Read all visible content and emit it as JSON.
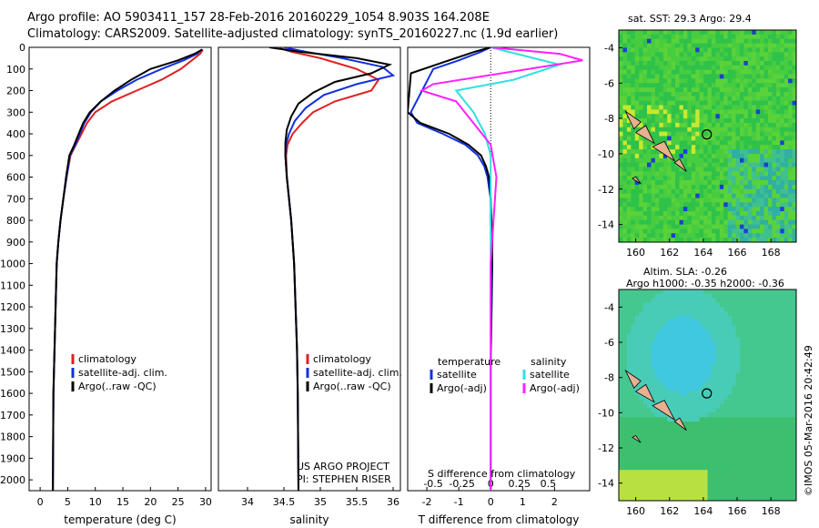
{
  "header": {
    "line1": "Argo profile: AO 5903411_157 28-Feb-2016 20160229_1054 8.903S 164.208E",
    "line2": "Climatology: CARS2009. Satellite-adjusted climatology: synTS_20160227.nc (1.9d earlier)"
  },
  "credits": {
    "project": "US ARGO PROJECT",
    "pi": "PI: STEPHEN RISER",
    "imos": "©IMOS 05-Mar-2016 20:42:49"
  },
  "colors": {
    "climatology": "#e02020",
    "satellite": "#1030e0",
    "argo": "#000000",
    "sal_satellite": "#30e0e0",
    "sal_argo": "#ff20ff",
    "map_island": "#e8b090",
    "map_float": "#000000"
  },
  "map_sst": {
    "title": "sat. SST: 29.3 Argo: 29.4",
    "float_lon": 164.208,
    "float_lat": -8.903,
    "xticks": [
      "160",
      "162",
      "164",
      "166",
      "168"
    ],
    "yticks": [
      "-4",
      "-6",
      "-8",
      "-10",
      "-12",
      "-14"
    ]
  },
  "map_sla": {
    "title1": "Altim. SLA: -0.26",
    "title2": "Argo h1000: -0.35 h2000: -0.36",
    "float_lon": 164.208,
    "float_lat": -8.903,
    "xticks": [
      "160",
      "162",
      "164",
      "166",
      "168"
    ],
    "yticks": [
      "-4",
      "-6",
      "-8",
      "-10",
      "-12",
      "-14"
    ]
  },
  "chart_data": [
    {
      "type": "line",
      "id": "temperature",
      "xlabel": "temperature (deg C)",
      "ylabel": "",
      "xlim": [
        -2,
        31
      ],
      "ylim": [
        2050,
        0
      ],
      "xticks": [
        "0",
        "5",
        "10",
        "15",
        "20",
        "25",
        "30"
      ],
      "yticks": [
        "0",
        "100",
        "200",
        "300",
        "400",
        "500",
        "600",
        "700",
        "800",
        "900",
        "1000",
        "1100",
        "1200",
        "1300",
        "1400",
        "1500",
        "1600",
        "1700",
        "1800",
        "1900",
        "2000"
      ],
      "legend": [
        "climatology",
        "satellite-adj. clim.",
        "Argo(..raw -QC)"
      ],
      "series": [
        {
          "name": "climatology",
          "color": "climatology",
          "x": [
            29.5,
            29.0,
            27.5,
            25.5,
            22.0,
            17.5,
            13.0,
            10.0,
            8.5,
            7.5,
            6.5,
            5.5,
            4.8,
            4.2,
            3.7,
            3.3,
            3.0,
            2.8,
            2.6,
            2.4,
            2.3
          ],
          "y": [
            10,
            30,
            60,
            100,
            150,
            200,
            250,
            300,
            350,
            400,
            450,
            500,
            600,
            700,
            800,
            900,
            1000,
            1200,
            1400,
            1600,
            2050
          ]
        },
        {
          "name": "satellite-adj. clim.",
          "color": "satellite",
          "x": [
            29.3,
            28.5,
            26.0,
            22.0,
            17.5,
            14.0,
            11.0,
            9.2,
            8.0,
            7.2,
            6.4,
            5.4,
            4.8,
            4.2,
            3.7,
            3.3,
            3.0,
            2.8,
            2.6,
            2.4,
            2.3
          ],
          "y": [
            10,
            30,
            60,
            100,
            150,
            200,
            250,
            300,
            350,
            400,
            450,
            500,
            600,
            700,
            800,
            900,
            1000,
            1200,
            1400,
            1600,
            2050
          ]
        },
        {
          "name": "Argo(..raw -QC)",
          "color": "argo",
          "x": [
            29.4,
            28.0,
            25.0,
            20.0,
            16.5,
            13.5,
            11.0,
            9.0,
            7.8,
            7.0,
            6.2,
            5.3,
            4.7,
            4.2,
            3.7,
            3.3,
            3.0,
            2.8,
            2.6,
            2.4,
            2.3
          ],
          "y": [
            10,
            30,
            60,
            100,
            150,
            200,
            250,
            300,
            350,
            400,
            450,
            500,
            600,
            700,
            800,
            900,
            1000,
            1200,
            1400,
            1600,
            2050
          ]
        }
      ]
    },
    {
      "type": "line",
      "id": "salinity",
      "xlabel": "salinity",
      "xlim": [
        33.6,
        36.1
      ],
      "ylim": [
        2050,
        0
      ],
      "xticks": [
        "34",
        "34.5",
        "35",
        "35.5",
        "36"
      ],
      "legend": [
        "climatology",
        "satellite-adj. clim.",
        "Argo(..raw -QC)"
      ],
      "series": [
        {
          "name": "climatology",
          "color": "climatology",
          "x": [
            34.4,
            34.6,
            35.0,
            35.5,
            35.8,
            35.7,
            35.2,
            34.9,
            34.75,
            34.62,
            34.55,
            34.53,
            34.54,
            34.57,
            34.6,
            34.62,
            34.64,
            34.66,
            34.68,
            34.69,
            34.7
          ],
          "y": [
            0,
            20,
            50,
            100,
            150,
            200,
            250,
            300,
            350,
            400,
            450,
            500,
            600,
            700,
            800,
            900,
            1000,
            1200,
            1400,
            1600,
            2050
          ]
        },
        {
          "name": "satellite-adj. clim.",
          "color": "satellite",
          "x": [
            34.5,
            34.8,
            35.3,
            35.85,
            36.0,
            35.5,
            35.05,
            34.8,
            34.65,
            34.57,
            34.53,
            34.52,
            34.54,
            34.57,
            34.6,
            34.62,
            34.64,
            34.66,
            34.68,
            34.69,
            34.7
          ],
          "y": [
            0,
            20,
            50,
            90,
            130,
            170,
            220,
            280,
            340,
            400,
            450,
            500,
            600,
            700,
            800,
            900,
            1000,
            1200,
            1400,
            1600,
            2050
          ]
        },
        {
          "name": "Argo(..raw -QC)",
          "color": "argo",
          "x": [
            34.3,
            34.7,
            35.5,
            35.95,
            35.7,
            35.2,
            34.9,
            34.7,
            34.6,
            34.54,
            34.52,
            34.52,
            34.54,
            34.57,
            34.6,
            34.62,
            34.64,
            34.66,
            34.68,
            34.69,
            34.7
          ],
          "y": [
            0,
            20,
            50,
            80,
            120,
            160,
            210,
            260,
            320,
            380,
            440,
            500,
            600,
            700,
            800,
            900,
            1000,
            1200,
            1400,
            1600,
            2050
          ]
        }
      ]
    },
    {
      "type": "line",
      "id": "difference",
      "xlabel": "T difference from climatology",
      "xlabel2": "S difference from climatology",
      "xlim": [
        -2.6,
        3.1
      ],
      "ylim": [
        2050,
        0
      ],
      "xticks": [
        "-2",
        "-1",
        "0",
        "1",
        "2"
      ],
      "xticks_s": [
        "-0.5",
        "-0.25",
        "0",
        "0.25",
        "0.5"
      ],
      "legend_t_title": "temperature",
      "legend_s_title": "salinity",
      "legend": [
        "satellite",
        "Argo(-adj)",
        "satellite",
        "Argo(-adj)"
      ],
      "series": [
        {
          "name": "satellite",
          "quantity": "temperature",
          "color": "satellite",
          "x": [
            0,
            -0.3,
            -1.0,
            -1.8,
            -2.5,
            -2.3,
            -1.5,
            -0.8,
            -0.4,
            -0.2,
            -0.1,
            0,
            0,
            0.05,
            0,
            0
          ],
          "y": [
            0,
            20,
            60,
            100,
            300,
            350,
            400,
            450,
            500,
            550,
            600,
            700,
            800,
            1000,
            1500,
            2050
          ]
        },
        {
          "name": "Argo(-adj)",
          "quantity": "temperature",
          "color": "argo",
          "x": [
            0,
            -0.5,
            -1.5,
            -2.5,
            -2.6,
            -2.2,
            -1.3,
            -0.7,
            -0.3,
            -0.15,
            -0.05,
            0,
            0.05,
            0,
            0
          ],
          "y": [
            0,
            20,
            70,
            120,
            300,
            350,
            400,
            450,
            500,
            550,
            600,
            700,
            900,
            1500,
            2050
          ]
        },
        {
          "name": "satellite",
          "quantity": "salinity",
          "color": "sal_satellite",
          "x": [
            0,
            0.3,
            0.6,
            0.2,
            -0.3,
            -0.15,
            -0.05,
            0,
            0,
            0
          ],
          "y": [
            0,
            40,
            80,
            150,
            200,
            300,
            400,
            500,
            1000,
            2050
          ]
        },
        {
          "name": "Argo(-adj)",
          "quantity": "salinity",
          "color": "sal_argo",
          "x": [
            0,
            0.6,
            0.8,
            -0.5,
            -0.6,
            -0.3,
            0,
            0.05,
            0,
            0
          ],
          "y": [
            0,
            30,
            60,
            170,
            200,
            250,
            450,
            600,
            1000,
            2050
          ]
        }
      ]
    }
  ]
}
